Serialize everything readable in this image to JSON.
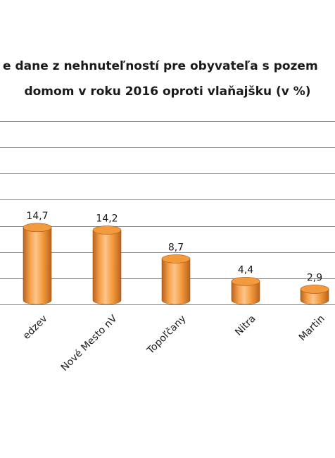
{
  "chart_data": {
    "type": "bar",
    "title_lines": [
      "e dane z nehnuteľností pre obyvateľa s pozem",
      "domom v roku 2016 oproti vlaňajšku (v %)"
    ],
    "categories": [
      "edzev",
      "Nové Mesto nV",
      "Topoľčany",
      "Nitra",
      "Martin"
    ],
    "values": [
      14.7,
      14.2,
      8.7,
      4.4,
      2.9
    ],
    "value_labels": [
      "14,7",
      "14,2",
      "8,7",
      "4,4",
      "2,9"
    ],
    "ylim": [
      0,
      35
    ],
    "grid": true,
    "bar_color": "#F39A3C"
  }
}
